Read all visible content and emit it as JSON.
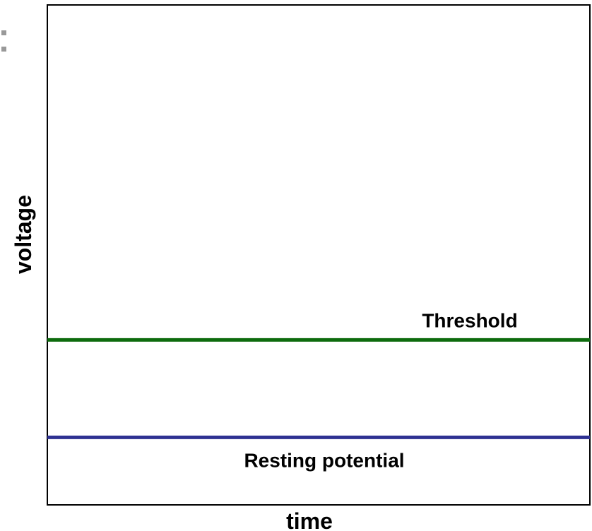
{
  "chart_data": {
    "type": "line",
    "title": "",
    "xlabel": "time",
    "ylabel": "voltage",
    "ylim": [
      0,
      1
    ],
    "xlim": [
      0,
      1
    ],
    "grid": false,
    "lines": [
      {
        "label": "Threshold",
        "y": 0.33,
        "color": "#0d6b0d"
      },
      {
        "label": "Resting potential",
        "y": 0.135,
        "color": "#2e3192"
      }
    ]
  }
}
